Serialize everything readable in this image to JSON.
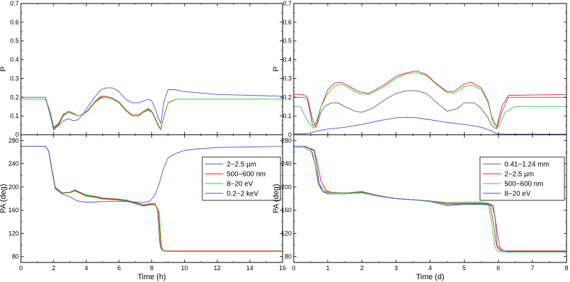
{
  "chart_data": [
    {
      "type": "line",
      "panel": "left-top",
      "ylabel": "P",
      "xlim": [
        0,
        16
      ],
      "ylim": [
        0,
        0.7
      ],
      "yticks": [
        "0",
        "0.1",
        "0.2",
        "0.3",
        "0.4",
        "0.5",
        "0.6",
        "0.7"
      ],
      "xticks": [
        "0",
        "2",
        "4",
        "6",
        "8",
        "10",
        "12",
        "14",
        "16"
      ],
      "series": [
        {
          "name": "2−2.5 µm",
          "color": "#606060",
          "x": [
            0,
            1.5,
            1.8,
            2.0,
            2.3,
            2.6,
            2.9,
            3.2,
            3.5,
            3.8,
            4.1,
            4.5,
            4.9,
            5.2,
            5.6,
            6.0,
            6.4,
            6.8,
            7.2,
            7.5,
            7.8,
            8.0,
            8.2,
            8.4,
            8.55,
            8.75,
            9.0,
            9.5,
            16
          ],
          "y": [
            0.19,
            0.19,
            0.12,
            0.04,
            0.06,
            0.11,
            0.12,
            0.11,
            0.1,
            0.11,
            0.13,
            0.17,
            0.2,
            0.2,
            0.19,
            0.17,
            0.13,
            0.1,
            0.1,
            0.12,
            0.13,
            0.12,
            0.09,
            0.05,
            0.03,
            0.1,
            0.17,
            0.19,
            0.19
          ]
        },
        {
          "name": "500−600 nm",
          "color": "#e41a1c",
          "x": [
            0,
            1.5,
            1.8,
            2.0,
            2.3,
            2.6,
            2.9,
            3.2,
            3.5,
            3.8,
            4.1,
            4.5,
            4.9,
            5.2,
            5.6,
            6.0,
            6.4,
            6.8,
            7.2,
            7.5,
            7.8,
            8.0,
            8.2,
            8.4,
            8.55,
            8.75,
            9.0,
            9.5,
            16
          ],
          "y": [
            0.19,
            0.19,
            0.12,
            0.035,
            0.055,
            0.105,
            0.125,
            0.115,
            0.1,
            0.11,
            0.13,
            0.175,
            0.205,
            0.205,
            0.195,
            0.175,
            0.135,
            0.105,
            0.105,
            0.125,
            0.14,
            0.125,
            0.09,
            0.05,
            0.028,
            0.1,
            0.17,
            0.19,
            0.19
          ]
        },
        {
          "name": "8−20 eV",
          "color": "#33cc33",
          "x": [
            0,
            1.5,
            1.8,
            2.0,
            2.3,
            2.6,
            2.9,
            3.2,
            3.5,
            3.8,
            4.1,
            4.5,
            4.9,
            5.2,
            5.6,
            6.0,
            6.4,
            6.8,
            7.2,
            7.5,
            7.8,
            8.0,
            8.2,
            8.4,
            8.55,
            8.75,
            9.0,
            9.5,
            16
          ],
          "y": [
            0.19,
            0.19,
            0.12,
            0.03,
            0.05,
            0.1,
            0.12,
            0.11,
            0.1,
            0.11,
            0.125,
            0.17,
            0.195,
            0.2,
            0.19,
            0.17,
            0.13,
            0.1,
            0.1,
            0.12,
            0.135,
            0.12,
            0.085,
            0.045,
            0.025,
            0.1,
            0.17,
            0.19,
            0.19
          ]
        },
        {
          "name": "0.2−2 keV",
          "color": "#4b4bdc",
          "x": [
            0,
            1.5,
            1.8,
            2.0,
            2.3,
            2.6,
            2.9,
            3.2,
            3.5,
            3.8,
            4.1,
            4.5,
            4.9,
            5.2,
            5.6,
            6.0,
            6.4,
            6.8,
            7.2,
            7.5,
            7.8,
            8.0,
            8.2,
            8.4,
            8.55,
            8.75,
            9.0,
            9.4,
            10,
            12,
            14,
            16
          ],
          "y": [
            0.2,
            0.2,
            0.1,
            0.025,
            0.05,
            0.075,
            0.085,
            0.075,
            0.08,
            0.11,
            0.15,
            0.2,
            0.24,
            0.25,
            0.25,
            0.23,
            0.19,
            0.17,
            0.17,
            0.18,
            0.19,
            0.18,
            0.14,
            0.09,
            0.06,
            0.18,
            0.24,
            0.24,
            0.23,
            0.215,
            0.21,
            0.205
          ]
        }
      ]
    },
    {
      "type": "line",
      "panel": "left-bottom",
      "xlabel": "Time (h)",
      "ylabel": "PA (deg)",
      "xlim": [
        0,
        16
      ],
      "ylim": [
        70,
        290
      ],
      "yticks": [
        "80",
        "120",
        "160",
        "200",
        "240",
        "280"
      ],
      "xticks": [
        "0",
        "2",
        "4",
        "6",
        "8",
        "10",
        "12",
        "14",
        "16"
      ],
      "legend_position": "top-right",
      "series": [
        {
          "name": "2−2.5 µm",
          "color": "#606060",
          "x": [
            0,
            1.5,
            1.7,
            1.9,
            2.1,
            2.5,
            3.0,
            3.3,
            3.6,
            4.0,
            4.5,
            5.0,
            5.5,
            6.0,
            6.5,
            7.0,
            7.5,
            7.9,
            8.2,
            8.35,
            8.5,
            8.6,
            8.8,
            9.0,
            10,
            16
          ],
          "y": [
            270,
            270,
            262,
            230,
            200,
            190,
            190,
            194,
            190,
            185,
            183,
            180,
            179,
            178,
            176,
            172,
            168,
            170,
            170,
            160,
            100,
            92,
            90,
            90,
            90,
            90
          ]
        },
        {
          "name": "500−600 nm",
          "color": "#e41a1c",
          "x": [
            0,
            1.5,
            1.7,
            1.9,
            2.1,
            2.5,
            3.0,
            3.3,
            3.6,
            4.0,
            4.5,
            5.0,
            5.5,
            6.0,
            6.5,
            7.0,
            7.5,
            7.9,
            8.2,
            8.4,
            8.55,
            8.65,
            8.8,
            9.0,
            10,
            16
          ],
          "y": [
            270,
            270,
            262,
            230,
            198,
            190,
            191,
            195,
            191,
            186,
            184,
            181,
            180,
            179,
            177,
            173,
            169,
            171,
            171,
            160,
            100,
            92,
            90,
            90,
            90,
            90
          ]
        },
        {
          "name": "8−20 eV",
          "color": "#33cc33",
          "x": [
            0,
            1.5,
            1.7,
            1.9,
            2.1,
            2.5,
            3.0,
            3.3,
            3.6,
            4.0,
            4.5,
            5.0,
            5.5,
            6.0,
            6.5,
            7.0,
            7.5,
            7.9,
            8.2,
            8.45,
            8.6,
            8.7,
            8.85,
            9.0,
            10,
            16
          ],
          "y": [
            270,
            270,
            262,
            228,
            197,
            189,
            190,
            193,
            189,
            184,
            182,
            179,
            178,
            177,
            175,
            171,
            167,
            169,
            169,
            158,
            98,
            90,
            89,
            89,
            89,
            89
          ]
        },
        {
          "name": "0.2−2 keV",
          "color": "#4b4bdc",
          "x": [
            0,
            1.5,
            1.7,
            1.9,
            2.1,
            2.5,
            3.0,
            3.3,
            3.6,
            4.0,
            4.5,
            5.0,
            5.5,
            6.0,
            6.5,
            7.0,
            7.5,
            7.9,
            8.2,
            8.45,
            8.7,
            9.0,
            9.5,
            10,
            11,
            12,
            14,
            16
          ],
          "y": [
            270,
            270,
            262,
            228,
            198,
            188,
            183,
            178,
            175,
            174,
            174,
            175,
            175,
            175,
            175,
            174,
            173,
            176,
            186,
            205,
            230,
            250,
            258,
            263,
            266,
            268,
            269,
            270
          ]
        }
      ]
    },
    {
      "type": "line",
      "panel": "right-top",
      "ylabel": "P",
      "xlim": [
        0,
        8
      ],
      "ylim": [
        0,
        0.7
      ],
      "yticks": [
        "0",
        "0.1",
        "0.2",
        "0.3",
        "0.4",
        "0.5",
        "0.6",
        "0.7"
      ],
      "xticks": [
        "0",
        "1",
        "2",
        "3",
        "4",
        "5",
        "6",
        "7",
        "8"
      ],
      "series": [
        {
          "name": "0.41−1.24 mm",
          "color": "#606060",
          "x": [
            0,
            0.25,
            0.4,
            0.55,
            0.7,
            0.8,
            0.9,
            1.1,
            1.3,
            1.5,
            1.8,
            2.0,
            2.3,
            2.7,
            3.0,
            3.3,
            3.6,
            3.9,
            4.2,
            4.5,
            4.8,
            5.0,
            5.3,
            5.5,
            5.7,
            5.8,
            5.95,
            6.1,
            6.3,
            8
          ],
          "y": [
            0.2,
            0.2,
            0.19,
            0.05,
            0.06,
            0.12,
            0.15,
            0.17,
            0.17,
            0.15,
            0.125,
            0.12,
            0.14,
            0.19,
            0.22,
            0.235,
            0.235,
            0.22,
            0.17,
            0.125,
            0.14,
            0.17,
            0.17,
            0.14,
            0.09,
            0.05,
            0.03,
            0.12,
            0.2,
            0.2
          ]
        },
        {
          "name": "2−2.5 µm",
          "color": "#e41a1c",
          "x": [
            0,
            0.25,
            0.4,
            0.55,
            0.65,
            0.8,
            1.0,
            1.2,
            1.4,
            1.6,
            1.9,
            2.2,
            2.6,
            3.0,
            3.3,
            3.6,
            3.9,
            4.2,
            4.5,
            4.7,
            5.0,
            5.2,
            5.5,
            5.7,
            5.8,
            5.95,
            6.1,
            6.3,
            8
          ],
          "y": [
            0.215,
            0.215,
            0.2,
            0.08,
            0.04,
            0.15,
            0.24,
            0.275,
            0.28,
            0.26,
            0.23,
            0.22,
            0.26,
            0.31,
            0.33,
            0.34,
            0.32,
            0.27,
            0.23,
            0.23,
            0.27,
            0.28,
            0.25,
            0.18,
            0.1,
            0.04,
            0.15,
            0.21,
            0.215
          ]
        },
        {
          "name": "500−600 nm",
          "color": "#33cc33",
          "x": [
            0,
            0.2,
            0.35,
            0.5,
            0.6,
            0.8,
            1.0,
            1.2,
            1.4,
            1.6,
            1.9,
            2.2,
            2.6,
            3.0,
            3.3,
            3.6,
            3.9,
            4.2,
            4.5,
            4.7,
            5.0,
            5.2,
            5.5,
            5.7,
            5.85,
            6.0,
            6.2,
            6.5,
            8
          ],
          "y": [
            0.15,
            0.15,
            0.09,
            0.05,
            0.035,
            0.15,
            0.22,
            0.26,
            0.27,
            0.25,
            0.22,
            0.215,
            0.25,
            0.3,
            0.325,
            0.33,
            0.315,
            0.265,
            0.225,
            0.22,
            0.255,
            0.265,
            0.24,
            0.17,
            0.06,
            0.04,
            0.12,
            0.15,
            0.15
          ]
        },
        {
          "name": "8−20 eV",
          "color": "#4b4bdc",
          "x": [
            0,
            0.3,
            0.5,
            0.7,
            1.0,
            1.5,
            2.0,
            2.5,
            3.0,
            3.3,
            3.6,
            4.0,
            4.5,
            5.0,
            5.5,
            5.8,
            5.95,
            6.1,
            6.5,
            8
          ],
          "y": [
            0.005,
            0.005,
            0.01,
            0.02,
            0.03,
            0.04,
            0.055,
            0.075,
            0.09,
            0.093,
            0.09,
            0.08,
            0.065,
            0.055,
            0.04,
            0.02,
            0.005,
            0.003,
            0.003,
            0.003
          ]
        }
      ]
    },
    {
      "type": "line",
      "panel": "right-bottom",
      "xlabel": "Time (d)",
      "ylabel": "PA (deg)",
      "xlim": [
        0,
        8
      ],
      "ylim": [
        70,
        290
      ],
      "yticks": [
        "80",
        "120",
        "160",
        "200",
        "240",
        "280"
      ],
      "xticks": [
        "0",
        "1",
        "2",
        "3",
        "4",
        "5",
        "6",
        "7",
        "8"
      ],
      "legend_position": "top-right",
      "series": [
        {
          "name": "0.41−1.24 mm",
          "color": "#606060",
          "x": [
            0,
            0.3,
            0.5,
            0.62,
            0.72,
            0.85,
            1.0,
            1.5,
            2.0,
            2.5,
            3.0,
            3.5,
            4.0,
            4.5,
            5.0,
            5.5,
            5.8,
            5.9,
            5.97,
            6.05,
            6.2,
            6.5,
            8
          ],
          "y": [
            270,
            270,
            265,
            240,
            205,
            192,
            190,
            190,
            191,
            185,
            180,
            178,
            176,
            170,
            171,
            171,
            170,
            150,
            100,
            92,
            90,
            90,
            90
          ]
        },
        {
          "name": "2−2.5 µm",
          "color": "#e41a1c",
          "x": [
            0,
            0.3,
            0.6,
            0.7,
            0.8,
            0.95,
            1.1,
            1.5,
            2.0,
            2.5,
            3.0,
            3.5,
            4.0,
            4.5,
            5.0,
            5.5,
            5.75,
            5.85,
            5.95,
            6.05,
            6.2,
            6.5,
            8
          ],
          "y": [
            270,
            270,
            264,
            240,
            210,
            194,
            191,
            190,
            192,
            185,
            180,
            178,
            176,
            172,
            172,
            172,
            171,
            140,
            98,
            91,
            90,
            90,
            90
          ]
        },
        {
          "name": "500−600 nm",
          "color": "#33cc33",
          "x": [
            0,
            0.3,
            0.55,
            0.65,
            0.75,
            0.9,
            1.1,
            1.5,
            2.0,
            2.5,
            3.0,
            3.5,
            4.0,
            4.5,
            5.0,
            5.5,
            5.7,
            5.8,
            5.9,
            6.0,
            6.15,
            6.5,
            8
          ],
          "y": [
            268,
            268,
            260,
            232,
            205,
            193,
            190,
            190,
            191,
            185,
            180,
            178,
            176,
            173,
            174,
            174,
            173,
            140,
            96,
            89,
            88,
            88,
            88
          ]
        },
        {
          "name": "8−20 eV",
          "color": "#4b4bdc",
          "x": [
            0,
            0.35,
            0.6,
            0.68,
            0.75,
            0.85,
            1.0,
            1.5,
            2.0,
            2.5,
            3.0,
            3.5,
            4.0,
            4.5,
            5.0,
            5.5,
            5.85,
            5.95,
            6.05,
            6.15,
            6.3,
            6.5,
            8
          ],
          "y": [
            270,
            270,
            262,
            235,
            205,
            192,
            188,
            188,
            190,
            184,
            180,
            178,
            175,
            168,
            170,
            170,
            168,
            130,
            96,
            90,
            89,
            89,
            89
          ]
        }
      ]
    }
  ]
}
